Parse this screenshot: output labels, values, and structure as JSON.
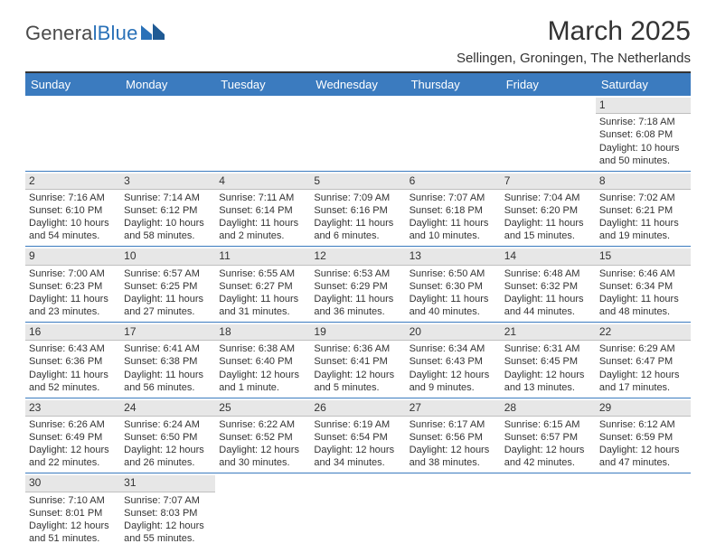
{
  "logo": {
    "dark": "Genera",
    "blue": "lBlue"
  },
  "title": "March 2025",
  "subtitle": "Sellingen, Groningen, The Netherlands",
  "header_color": "#3b7bbf",
  "divider_color": "#3b7bbf",
  "daynum_bg": "#e7e7e7",
  "text_color": "#333333",
  "days": [
    "Sunday",
    "Monday",
    "Tuesday",
    "Wednesday",
    "Thursday",
    "Friday",
    "Saturday"
  ],
  "grid": [
    [
      null,
      null,
      null,
      null,
      null,
      null,
      {
        "n": "1",
        "sr": "Sunrise: 7:18 AM",
        "ss": "Sunset: 6:08 PM",
        "dl": "Daylight: 10 hours and 50 minutes."
      }
    ],
    [
      {
        "n": "2",
        "sr": "Sunrise: 7:16 AM",
        "ss": "Sunset: 6:10 PM",
        "dl": "Daylight: 10 hours and 54 minutes."
      },
      {
        "n": "3",
        "sr": "Sunrise: 7:14 AM",
        "ss": "Sunset: 6:12 PM",
        "dl": "Daylight: 10 hours and 58 minutes."
      },
      {
        "n": "4",
        "sr": "Sunrise: 7:11 AM",
        "ss": "Sunset: 6:14 PM",
        "dl": "Daylight: 11 hours and 2 minutes."
      },
      {
        "n": "5",
        "sr": "Sunrise: 7:09 AM",
        "ss": "Sunset: 6:16 PM",
        "dl": "Daylight: 11 hours and 6 minutes."
      },
      {
        "n": "6",
        "sr": "Sunrise: 7:07 AM",
        "ss": "Sunset: 6:18 PM",
        "dl": "Daylight: 11 hours and 10 minutes."
      },
      {
        "n": "7",
        "sr": "Sunrise: 7:04 AM",
        "ss": "Sunset: 6:20 PM",
        "dl": "Daylight: 11 hours and 15 minutes."
      },
      {
        "n": "8",
        "sr": "Sunrise: 7:02 AM",
        "ss": "Sunset: 6:21 PM",
        "dl": "Daylight: 11 hours and 19 minutes."
      }
    ],
    [
      {
        "n": "9",
        "sr": "Sunrise: 7:00 AM",
        "ss": "Sunset: 6:23 PM",
        "dl": "Daylight: 11 hours and 23 minutes."
      },
      {
        "n": "10",
        "sr": "Sunrise: 6:57 AM",
        "ss": "Sunset: 6:25 PM",
        "dl": "Daylight: 11 hours and 27 minutes."
      },
      {
        "n": "11",
        "sr": "Sunrise: 6:55 AM",
        "ss": "Sunset: 6:27 PM",
        "dl": "Daylight: 11 hours and 31 minutes."
      },
      {
        "n": "12",
        "sr": "Sunrise: 6:53 AM",
        "ss": "Sunset: 6:29 PM",
        "dl": "Daylight: 11 hours and 36 minutes."
      },
      {
        "n": "13",
        "sr": "Sunrise: 6:50 AM",
        "ss": "Sunset: 6:30 PM",
        "dl": "Daylight: 11 hours and 40 minutes."
      },
      {
        "n": "14",
        "sr": "Sunrise: 6:48 AM",
        "ss": "Sunset: 6:32 PM",
        "dl": "Daylight: 11 hours and 44 minutes."
      },
      {
        "n": "15",
        "sr": "Sunrise: 6:46 AM",
        "ss": "Sunset: 6:34 PM",
        "dl": "Daylight: 11 hours and 48 minutes."
      }
    ],
    [
      {
        "n": "16",
        "sr": "Sunrise: 6:43 AM",
        "ss": "Sunset: 6:36 PM",
        "dl": "Daylight: 11 hours and 52 minutes."
      },
      {
        "n": "17",
        "sr": "Sunrise: 6:41 AM",
        "ss": "Sunset: 6:38 PM",
        "dl": "Daylight: 11 hours and 56 minutes."
      },
      {
        "n": "18",
        "sr": "Sunrise: 6:38 AM",
        "ss": "Sunset: 6:40 PM",
        "dl": "Daylight: 12 hours and 1 minute."
      },
      {
        "n": "19",
        "sr": "Sunrise: 6:36 AM",
        "ss": "Sunset: 6:41 PM",
        "dl": "Daylight: 12 hours and 5 minutes."
      },
      {
        "n": "20",
        "sr": "Sunrise: 6:34 AM",
        "ss": "Sunset: 6:43 PM",
        "dl": "Daylight: 12 hours and 9 minutes."
      },
      {
        "n": "21",
        "sr": "Sunrise: 6:31 AM",
        "ss": "Sunset: 6:45 PM",
        "dl": "Daylight: 12 hours and 13 minutes."
      },
      {
        "n": "22",
        "sr": "Sunrise: 6:29 AM",
        "ss": "Sunset: 6:47 PM",
        "dl": "Daylight: 12 hours and 17 minutes."
      }
    ],
    [
      {
        "n": "23",
        "sr": "Sunrise: 6:26 AM",
        "ss": "Sunset: 6:49 PM",
        "dl": "Daylight: 12 hours and 22 minutes."
      },
      {
        "n": "24",
        "sr": "Sunrise: 6:24 AM",
        "ss": "Sunset: 6:50 PM",
        "dl": "Daylight: 12 hours and 26 minutes."
      },
      {
        "n": "25",
        "sr": "Sunrise: 6:22 AM",
        "ss": "Sunset: 6:52 PM",
        "dl": "Daylight: 12 hours and 30 minutes."
      },
      {
        "n": "26",
        "sr": "Sunrise: 6:19 AM",
        "ss": "Sunset: 6:54 PM",
        "dl": "Daylight: 12 hours and 34 minutes."
      },
      {
        "n": "27",
        "sr": "Sunrise: 6:17 AM",
        "ss": "Sunset: 6:56 PM",
        "dl": "Daylight: 12 hours and 38 minutes."
      },
      {
        "n": "28",
        "sr": "Sunrise: 6:15 AM",
        "ss": "Sunset: 6:57 PM",
        "dl": "Daylight: 12 hours and 42 minutes."
      },
      {
        "n": "29",
        "sr": "Sunrise: 6:12 AM",
        "ss": "Sunset: 6:59 PM",
        "dl": "Daylight: 12 hours and 47 minutes."
      }
    ],
    [
      {
        "n": "30",
        "sr": "Sunrise: 7:10 AM",
        "ss": "Sunset: 8:01 PM",
        "dl": "Daylight: 12 hours and 51 minutes."
      },
      {
        "n": "31",
        "sr": "Sunrise: 7:07 AM",
        "ss": "Sunset: 8:03 PM",
        "dl": "Daylight: 12 hours and 55 minutes."
      },
      null,
      null,
      null,
      null,
      null
    ]
  ]
}
